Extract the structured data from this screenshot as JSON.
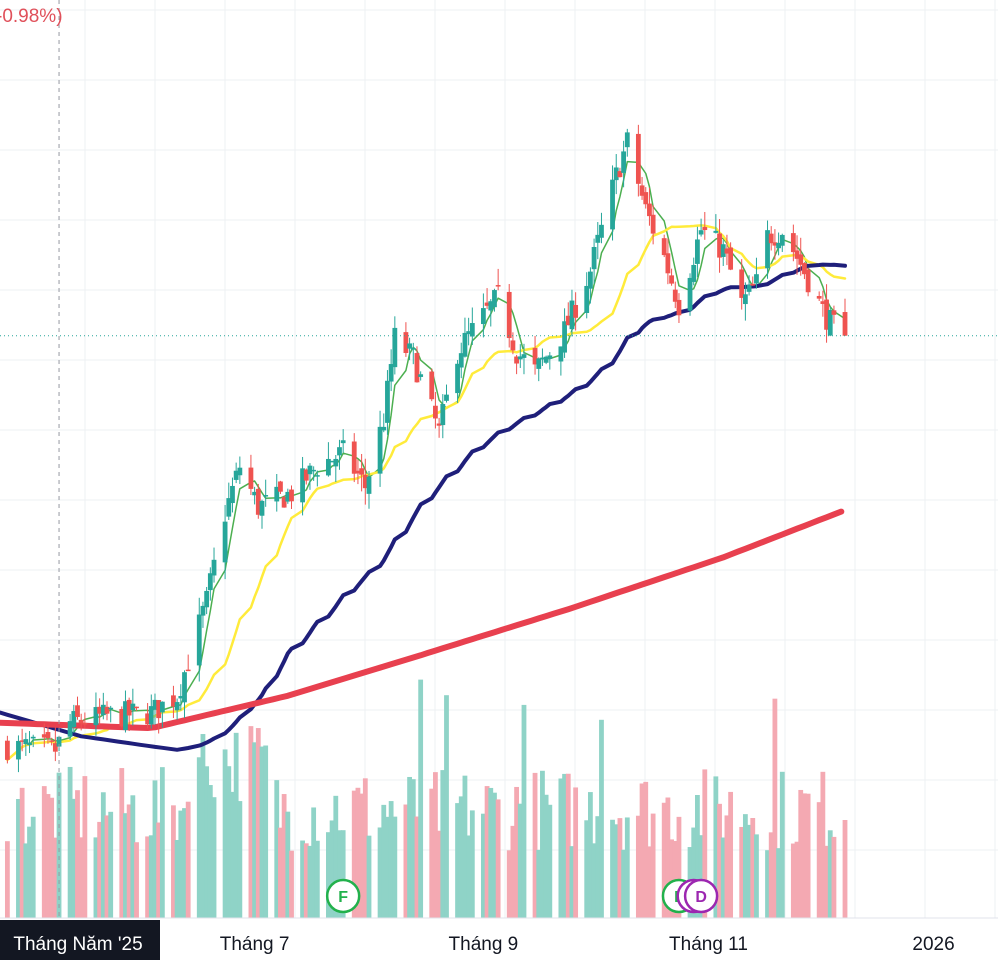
{
  "header": {
    "change_percent_text": "-0.98%)"
  },
  "colors": {
    "up": "#26a69a",
    "down": "#ef5350",
    "vol_up": "#8fd3c7",
    "vol_down": "#f4a9b2",
    "ma_fast": "#4caf50",
    "ma_mid": "#ffeb3b",
    "ma_slow": "#1f1f7a",
    "ma_long": "#e8404f",
    "dividend": "#9c27b0",
    "earnings": "#22b14c",
    "grid": "#eef0f3",
    "price_line": "#26a69a",
    "crosshair": "#9598a1"
  },
  "time_axis": {
    "labels": [
      {
        "text": "Tháng Năm '25",
        "highlighted": true
      },
      {
        "text": "Tháng 7",
        "highlighted": false
      },
      {
        "text": "Tháng 9",
        "highlighted": false
      },
      {
        "text": "Tháng 11",
        "highlighted": false
      },
      {
        "text": "2026",
        "highlighted": false
      }
    ]
  },
  "event_markers": [
    {
      "letter": "F",
      "type": "earnings",
      "date": "2025-07-25"
    },
    {
      "letter": "F",
      "type": "earnings",
      "date": "2025-10-24"
    },
    {
      "letter": "D",
      "type": "dividend",
      "date": "2025-10-28"
    },
    {
      "letter": "D",
      "type": "dividend",
      "date": "2025-10-30"
    }
  ],
  "chart_data": {
    "type": "candlestick",
    "title": "",
    "xlabel": "",
    "ylabel": "",
    "grid": true,
    "x_range": [
      "2025-04-23",
      "2026-01-19"
    ],
    "y_range": [
      0.0,
      1.0
    ],
    "y_scale_note": "price axis not visible; values normalized 0-1",
    "anchors": [
      {
        "date": "2025-04-25",
        "close": 0.035
      },
      {
        "date": "2025-05-08",
        "close": 0.03
      },
      {
        "date": "2025-05-12",
        "close": 0.07
      },
      {
        "date": "2025-05-22",
        "close": 0.08
      },
      {
        "date": "2025-06-03",
        "close": 0.085
      },
      {
        "date": "2025-06-10",
        "close": 0.11
      },
      {
        "date": "2025-06-18",
        "close": 0.25
      },
      {
        "date": "2025-06-23",
        "close": 0.38
      },
      {
        "date": "2025-06-27",
        "close": 0.45
      },
      {
        "date": "2025-07-02",
        "close": 0.39
      },
      {
        "date": "2025-07-11",
        "close": 0.41
      },
      {
        "date": "2025-07-18",
        "close": 0.45
      },
      {
        "date": "2025-07-25",
        "close": 0.47
      },
      {
        "date": "2025-07-31",
        "close": 0.42
      },
      {
        "date": "2025-08-05",
        "close": 0.52
      },
      {
        "date": "2025-08-08",
        "close": 0.64
      },
      {
        "date": "2025-08-13",
        "close": 0.61
      },
      {
        "date": "2025-08-20",
        "close": 0.5
      },
      {
        "date": "2025-08-25",
        "close": 0.62
      },
      {
        "date": "2025-08-29",
        "close": 0.65
      },
      {
        "date": "2025-09-05",
        "close": 0.7
      },
      {
        "date": "2025-09-10",
        "close": 0.62
      },
      {
        "date": "2025-09-15",
        "close": 0.59
      },
      {
        "date": "2025-09-23",
        "close": 0.65
      },
      {
        "date": "2025-09-30",
        "close": 0.74
      },
      {
        "date": "2025-10-07",
        "close": 0.88
      },
      {
        "date": "2025-10-10",
        "close": 0.93
      },
      {
        "date": "2025-10-15",
        "close": 0.83
      },
      {
        "date": "2025-10-20",
        "close": 0.76
      },
      {
        "date": "2025-10-24",
        "close": 0.69
      },
      {
        "date": "2025-10-30",
        "close": 0.8
      },
      {
        "date": "2025-11-05",
        "close": 0.77
      },
      {
        "date": "2025-11-10",
        "close": 0.69
      },
      {
        "date": "2025-11-14",
        "close": 0.72
      },
      {
        "date": "2025-11-17",
        "close": 0.79
      },
      {
        "date": "2025-11-21",
        "close": 0.8
      },
      {
        "date": "2025-11-26",
        "close": 0.75
      },
      {
        "date": "2025-12-02",
        "close": 0.68
      },
      {
        "date": "2025-12-08",
        "close": 0.63
      }
    ],
    "moving_averages": [
      {
        "key": "ma_fast",
        "period": 5,
        "stroke": 1.5
      },
      {
        "key": "ma_mid",
        "period": 20,
        "stroke": 2.5
      },
      {
        "key": "ma_slow",
        "period": 50,
        "stroke": 4
      },
      {
        "key": "ma_long",
        "period": 200,
        "stroke": 6
      }
    ],
    "ma_seed": {
      "ma_slow": [
        {
          "date": "2025-04-23",
          "value": 0.085
        },
        {
          "date": "2025-05-15",
          "value": 0.05
        },
        {
          "date": "2025-06-03",
          "value": 0.035
        },
        {
          "date": "2025-06-10",
          "value": 0.03
        }
      ],
      "ma_long": [
        {
          "date": "2025-04-23",
          "value": 0.07
        },
        {
          "date": "2025-06-03",
          "value": 0.062
        },
        {
          "date": "2025-07-10",
          "value": 0.11
        },
        {
          "date": "2025-08-15",
          "value": 0.17
        },
        {
          "date": "2025-09-25",
          "value": 0.24
        },
        {
          "date": "2025-11-05",
          "value": 0.315
        },
        {
          "date": "2025-12-08",
          "value": 0.385
        }
      ]
    },
    "volume": {
      "base": 0.28,
      "spike_dates": [
        "2025-08-15",
        "2025-08-22",
        "2025-09-12",
        "2025-10-03",
        "2025-11-19"
      ],
      "max": 1.0
    }
  }
}
